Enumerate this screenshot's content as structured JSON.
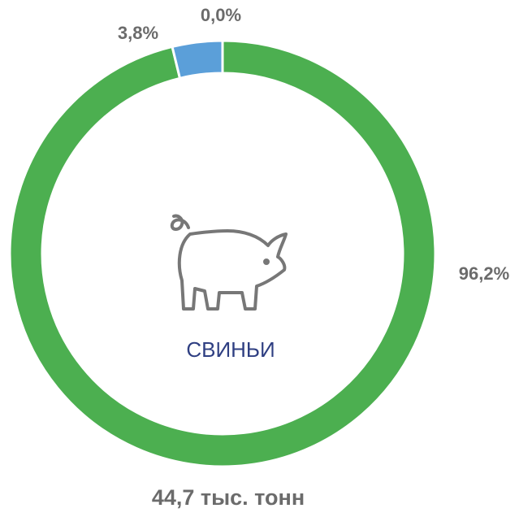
{
  "chart_data": {
    "type": "donut",
    "values": [
      96.2,
      3.8,
      0.0
    ],
    "value_labels": [
      "96,2%",
      "3,8%",
      "0,0%"
    ],
    "colors": [
      "#4caf50",
      "#5b9fd9",
      "#e35a5a"
    ],
    "center_label": "СВИНЬИ",
    "total_label": "44,7 тыс. тонн"
  }
}
